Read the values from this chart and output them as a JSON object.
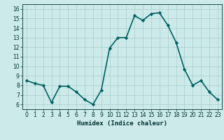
{
  "xlabel": "Humidex (Indice chaleur)",
  "x": [
    0,
    1,
    2,
    3,
    4,
    5,
    6,
    7,
    8,
    9,
    10,
    11,
    12,
    13,
    14,
    15,
    16,
    17,
    18,
    19,
    20,
    21,
    22,
    23
  ],
  "y": [
    8.5,
    8.2,
    8.0,
    6.2,
    7.9,
    7.9,
    7.3,
    6.5,
    6.0,
    7.5,
    11.9,
    13.0,
    13.0,
    15.3,
    14.8,
    15.5,
    15.6,
    14.3,
    12.5,
    9.7,
    8.0,
    8.5,
    7.3,
    6.5
  ],
  "line_color": "#006060",
  "marker": "D",
  "marker_size": 2.2,
  "bg_color": "#cceaea",
  "grid_color": "#aacccc",
  "xlim": [
    -0.5,
    23.5
  ],
  "ylim": [
    5.5,
    16.5
  ],
  "yticks": [
    6,
    7,
    8,
    9,
    10,
    11,
    12,
    13,
    14,
    15,
    16
  ],
  "xticks": [
    0,
    1,
    2,
    3,
    4,
    5,
    6,
    7,
    8,
    9,
    10,
    11,
    12,
    13,
    14,
    15,
    16,
    17,
    18,
    19,
    20,
    21,
    22,
    23
  ],
  "linewidth": 1.2,
  "tick_fontsize": 5.5,
  "xlabel_fontsize": 6.5
}
